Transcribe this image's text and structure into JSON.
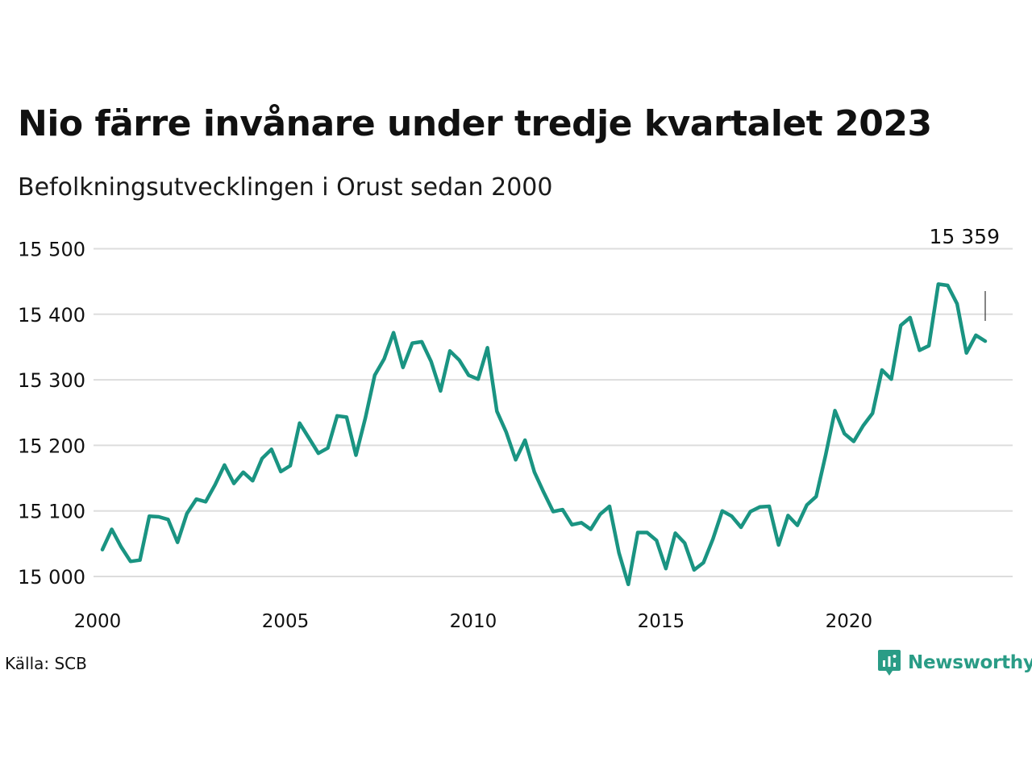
{
  "title": "Nio färre invånare under tredje kvartalet 2023",
  "subtitle": "Befolkningsutvecklingen i Orust sedan 2000",
  "source": "Källa: SCB",
  "brand": {
    "name": "Newsworthy",
    "icon": "newsworthy-logo-icon",
    "color": "#2a9c86"
  },
  "colors": {
    "line": "#1a9482",
    "grid": "#dddddd",
    "text": "#111111",
    "annotation_line": "#333333"
  },
  "chart_data": {
    "type": "line",
    "xlabel": "",
    "ylabel": "",
    "x_ticks": [
      2000,
      2005,
      2010,
      2015,
      2020
    ],
    "y_ticks": [
      15000,
      15100,
      15200,
      15300,
      15400,
      15500
    ],
    "y_tick_labels": [
      "15 000",
      "15 100",
      "15 200",
      "15 300",
      "15 400",
      "15 500"
    ],
    "ylim": [
      14975,
      15510
    ],
    "xlim": [
      2000.0,
      2024.25
    ],
    "grid": true,
    "x_start": "2000-Q1",
    "frequency": "quarterly",
    "values": [
      15041,
      15072,
      15045,
      15023,
      15025,
      15092,
      15091,
      15087,
      15052,
      15096,
      15118,
      15114,
      15140,
      15170,
      15142,
      15159,
      15146,
      15180,
      15194,
      15160,
      15169,
      15234,
      15211,
      15188,
      15196,
      15245,
      15243,
      15185,
      15242,
      15307,
      15332,
      15372,
      15319,
      15356,
      15358,
      15328,
      15283,
      15344,
      15330,
      15307,
      15301,
      15349,
      15252,
      15220,
      15178,
      15208,
      15159,
      15128,
      15099,
      15102,
      15079,
      15082,
      15072,
      15095,
      15107,
      15036,
      14988,
      15067,
      15067,
      15055,
      15012,
      15066,
      15051,
      15010,
      15021,
      15057,
      15100,
      15092,
      15075,
      15099,
      15106,
      15107,
      15048,
      15093,
      15078,
      15109,
      15122,
      15185,
      15253,
      15218,
      15206,
      15230,
      15249,
      15315,
      15301,
      15383,
      15395,
      15345,
      15352,
      15446,
      15444,
      15416,
      15341,
      15368,
      15359
    ],
    "annotation": {
      "label": "15 359",
      "value": 15359
    }
  }
}
